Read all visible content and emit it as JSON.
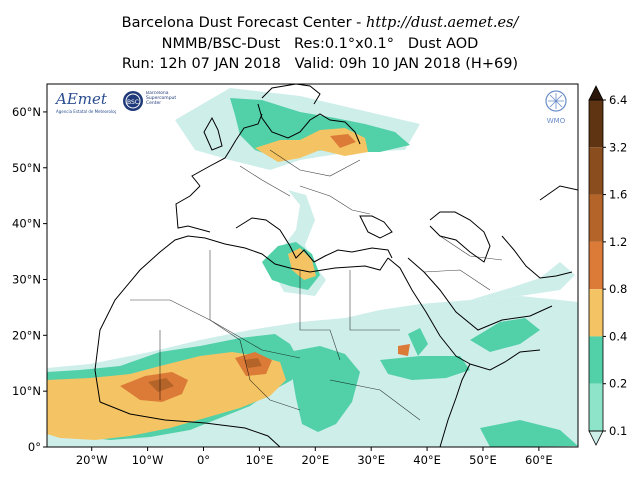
{
  "title": {
    "center_name": "Barcelona Dust Forecast Center - ",
    "url": "http://dust.aemet.es/",
    "line2": "NMMB/BSC-Dust   Res:0.1°x0.1°   Dust AOD",
    "line3": "Run: 12h 07 JAN 2018   Valid: 09h 10 JAN 2018 (H+69)"
  },
  "map": {
    "lon_range": [
      -28,
      67
    ],
    "lat_range": [
      0,
      65
    ],
    "lat_ticks": [
      {
        "value": 60,
        "label": "60°N"
      },
      {
        "value": 50,
        "label": "50°N"
      },
      {
        "value": 40,
        "label": "40°N"
      },
      {
        "value": 30,
        "label": "30°N"
      },
      {
        "value": 20,
        "label": "20°N"
      },
      {
        "value": 10,
        "label": "10°N"
      },
      {
        "value": 0,
        "label": "0°"
      }
    ],
    "lon_ticks": [
      {
        "value": -20,
        "label": "20°W"
      },
      {
        "value": -10,
        "label": "10°W"
      },
      {
        "value": 0,
        "label": "0°"
      },
      {
        "value": 10,
        "label": "10°E"
      },
      {
        "value": 20,
        "label": "20°E"
      },
      {
        "value": 30,
        "label": "30°E"
      },
      {
        "value": 40,
        "label": "40°E"
      },
      {
        "value": 50,
        "label": "50°E"
      },
      {
        "value": 60,
        "label": "60°E"
      }
    ]
  },
  "logos": {
    "aemet": "AEmet",
    "aemet_sub": "Agencia Estatal de Meteorología",
    "bsc": "BSC",
    "bsc_name": "Barcelona Supercomputing Center",
    "wmo": "WMO"
  },
  "colorbar": {
    "labels": [
      "6.4",
      "3.2",
      "1.6",
      "1.2",
      "0.8",
      "0.4",
      "0.2",
      "0.1"
    ],
    "colors": [
      "#2a1608",
      "#5e3412",
      "#8a4e1e",
      "#b46428",
      "#dc7a38",
      "#f4c464",
      "#52d0a8",
      "#8ee4c8",
      "#ceeeea"
    ]
  }
}
